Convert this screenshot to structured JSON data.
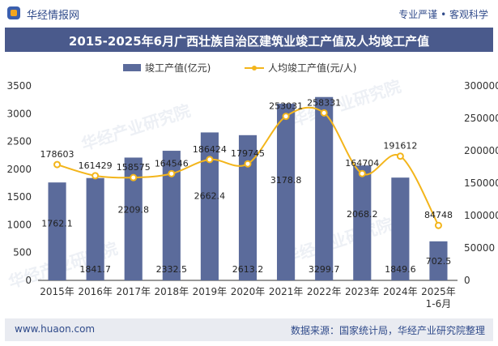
{
  "header": {
    "brand": "华经情报网",
    "tagline": "专业严谨 • 客观科学"
  },
  "footer": {
    "url": "www.huaon.com",
    "source": "数据来源：国家统计局，华经产业研究院整理"
  },
  "watermark": "华经产业研究院",
  "colors": {
    "bar": "#5b6b9b",
    "line": "#f3b51b",
    "title_bg": "#4a5a8c",
    "footer_bg": "#e9ebf1"
  },
  "chart_data": {
    "type": "bar+line",
    "title": "2015-2025年6月广西壮族自治区建筑业竣工产值及人均竣工产值",
    "categories": [
      "2015年",
      "2016年",
      "2017年",
      "2018年",
      "2019年",
      "2020年",
      "2021年",
      "2022年",
      "2023年",
      "2024年",
      "2025年\n1-6月"
    ],
    "series": [
      {
        "name": "竣工产值(亿元)",
        "type": "bar",
        "axis": "left",
        "values": [
          1762.1,
          1841.7,
          2209.8,
          2332.5,
          2662.4,
          2613.2,
          3178.8,
          3299.7,
          2068.2,
          1849.6,
          702.5
        ],
        "labels": [
          "1762.1",
          "1841.7",
          "2209.8",
          "2332.5",
          "2662.4",
          "2613.2",
          "3178.8",
          "3299.7",
          "2068.2",
          "1849.6",
          "702.5"
        ]
      },
      {
        "name": "人均竣工产值(元/人)",
        "type": "line",
        "axis": "right",
        "values": [
          178603,
          161429,
          158575,
          164546,
          186424,
          179745,
          253031,
          258331,
          164704,
          191612,
          84748
        ],
        "labels": [
          "178603",
          "161429",
          "158575",
          "164546",
          "186424",
          "179745",
          "253031",
          "258331",
          "164704",
          "191612",
          "84748"
        ]
      }
    ],
    "y_left": {
      "min": 0,
      "max": 3500,
      "ticks": [
        "0",
        "500",
        "1000",
        "1500",
        "2000",
        "2500",
        "3000",
        "3500"
      ]
    },
    "y_right": {
      "min": 0,
      "max": 300000,
      "ticks": [
        "0",
        "50000",
        "100000",
        "150000",
        "200000",
        "250000",
        "300000"
      ]
    },
    "legend_position": "top-center",
    "grid": false
  }
}
